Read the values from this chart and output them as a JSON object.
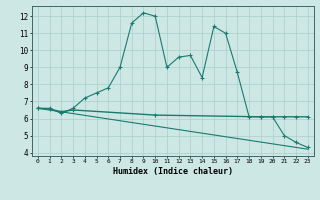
{
  "line1_x": [
    0,
    1,
    2,
    3,
    4,
    5,
    6,
    7,
    8,
    9,
    10,
    11,
    12,
    13,
    14,
    15,
    16,
    17,
    18,
    19,
    20,
    21,
    22,
    23
  ],
  "line1_y": [
    6.6,
    6.6,
    6.3,
    6.6,
    7.2,
    7.5,
    7.8,
    9.0,
    11.6,
    12.2,
    12.0,
    9.0,
    9.6,
    9.7,
    8.4,
    11.4,
    11.0,
    8.7,
    6.1,
    6.1,
    6.1,
    5.0,
    4.6,
    4.3
  ],
  "line2_x": [
    0,
    1,
    2,
    3,
    10,
    19,
    20,
    21,
    22,
    23
  ],
  "line2_y": [
    6.6,
    6.55,
    6.4,
    6.5,
    6.2,
    6.1,
    6.1,
    6.1,
    6.1,
    6.1
  ],
  "line3_x": [
    0,
    23
  ],
  "line3_y": [
    6.6,
    4.2
  ],
  "color": "#1a7a6e",
  "bg_color": "#cde8e4",
  "grid_color": "#aacfca",
  "xlabel": "Humidex (Indice chaleur)",
  "xlim": [
    -0.5,
    23.5
  ],
  "ylim": [
    3.8,
    12.6
  ],
  "yticks": [
    4,
    5,
    6,
    7,
    8,
    9,
    10,
    11,
    12
  ],
  "xticks": [
    0,
    1,
    2,
    3,
    4,
    5,
    6,
    7,
    8,
    9,
    10,
    11,
    12,
    13,
    14,
    15,
    16,
    17,
    18,
    19,
    20,
    21,
    22,
    23
  ]
}
